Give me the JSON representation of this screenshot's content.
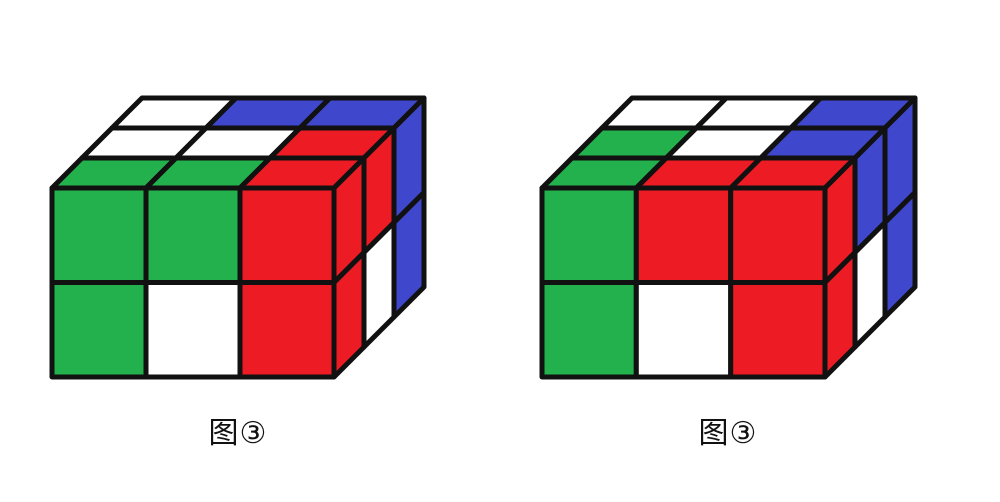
{
  "colors": {
    "G": "#22b14c",
    "W": "#ffffff",
    "B": "#3f48cc",
    "R": "#ed1c24",
    "outline": "#111111"
  },
  "figures": [
    {
      "caption": "图③",
      "faces": {
        "front": [
          [
            "G",
            "G",
            "R"
          ],
          [
            "G",
            "W",
            "R"
          ]
        ],
        "top": [
          [
            "W",
            "B",
            "B"
          ],
          [
            "W",
            "W",
            "R"
          ],
          [
            "G",
            "G",
            "R"
          ]
        ],
        "right": [
          [
            "R",
            "R",
            "B"
          ],
          [
            "R",
            "W",
            "B"
          ]
        ]
      }
    },
    {
      "caption": "图③",
      "faces": {
        "front": [
          [
            "G",
            "R",
            "R"
          ],
          [
            "G",
            "W",
            "R"
          ]
        ],
        "top": [
          [
            "W",
            "W",
            "B"
          ],
          [
            "G",
            "W",
            "B"
          ],
          [
            "G",
            "R",
            "R"
          ]
        ],
        "right": [
          [
            "R",
            "B",
            "B"
          ],
          [
            "R",
            "W",
            "B"
          ]
        ]
      }
    }
  ]
}
